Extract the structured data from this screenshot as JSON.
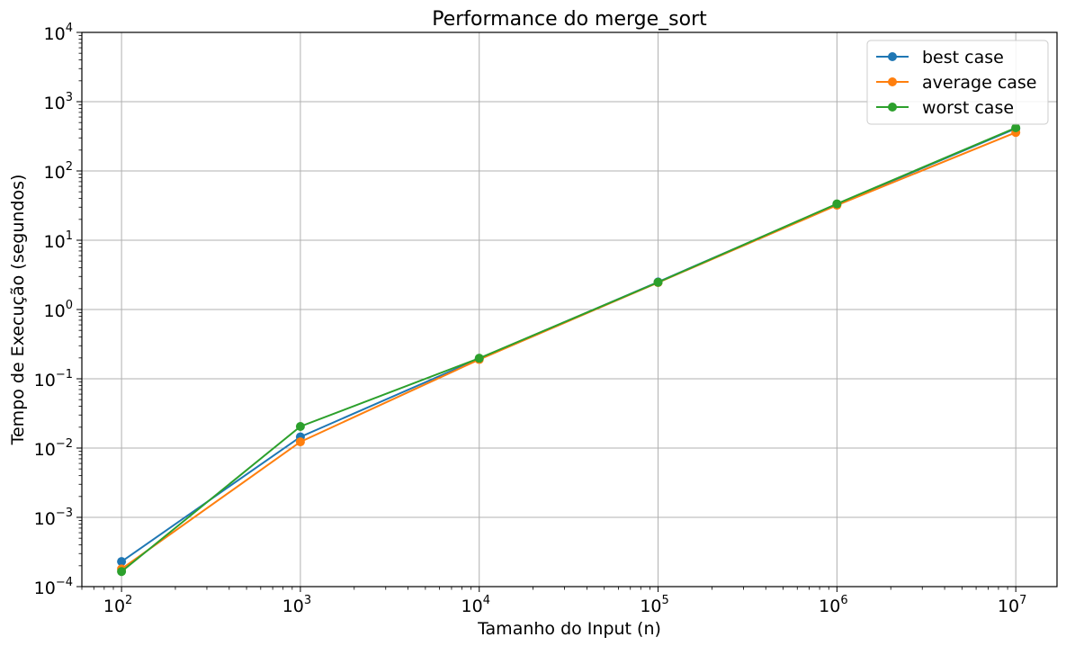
{
  "chart_data": {
    "type": "line",
    "title": "Performance do merge_sort",
    "xlabel": "Tamanho do Input (n)",
    "ylabel": "Tempo de Execução (segundos)",
    "xscale": "log",
    "yscale": "log",
    "xlim": [
      60,
      17000000
    ],
    "ylim": [
      0.0001,
      10000
    ],
    "grid": true,
    "legend_position": "top-right",
    "x": [
      100,
      1000,
      10000,
      100000,
      1000000,
      10000000
    ],
    "x_tick_labels": [
      {
        "base": "10",
        "exp": "2"
      },
      {
        "base": "10",
        "exp": "3"
      },
      {
        "base": "10",
        "exp": "4"
      },
      {
        "base": "10",
        "exp": "5"
      },
      {
        "base": "10",
        "exp": "6"
      },
      {
        "base": "10",
        "exp": "7"
      }
    ],
    "y_tick_labels": [
      {
        "base": "10",
        "exp": "−4"
      },
      {
        "base": "10",
        "exp": "−3"
      },
      {
        "base": "10",
        "exp": "−2"
      },
      {
        "base": "10",
        "exp": "−1"
      },
      {
        "base": "10",
        "exp": "0"
      },
      {
        "base": "10",
        "exp": "1"
      },
      {
        "base": "10",
        "exp": "2"
      },
      {
        "base": "10",
        "exp": "3"
      },
      {
        "base": "10",
        "exp": "4"
      }
    ],
    "series": [
      {
        "name": "best case",
        "color": "#1f77b4",
        "values": [
          0.00023,
          0.0145,
          0.195,
          2.5,
          33,
          410
        ]
      },
      {
        "name": "average case",
        "color": "#ff7f0e",
        "values": [
          0.00018,
          0.0123,
          0.19,
          2.45,
          32,
          360
        ]
      },
      {
        "name": "worst case",
        "color": "#2ca02c",
        "values": [
          0.000165,
          0.0205,
          0.198,
          2.47,
          33.5,
          420
        ]
      }
    ]
  }
}
